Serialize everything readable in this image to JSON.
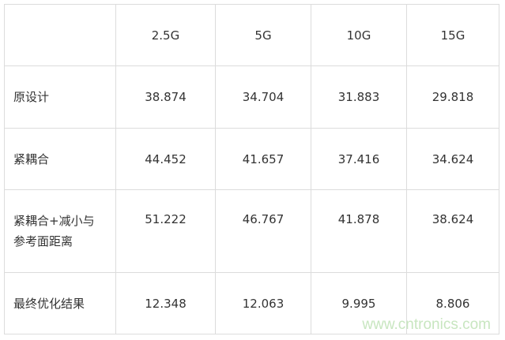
{
  "table": {
    "headers": [
      "",
      "2.5G",
      "5G",
      "10G",
      "15G"
    ],
    "rows": [
      {
        "label": "原设计",
        "values": [
          "38.874",
          "34.704",
          "31.883",
          "29.818"
        ]
      },
      {
        "label": "紧耦合",
        "values": [
          "44.452",
          "41.657",
          "37.416",
          "34.624"
        ]
      },
      {
        "label": "紧耦合+减小与参考面距离",
        "values": [
          "51.222",
          "46.767",
          "41.878",
          "38.624"
        ]
      },
      {
        "label": "最终优化结果",
        "values": [
          "12.348",
          "12.063",
          "9.995",
          "8.806"
        ]
      }
    ]
  },
  "watermark": "www.cntronics.com",
  "colors": {
    "text": "#333333",
    "border": "#dcdcdc",
    "watermark": "#c8e6c0"
  }
}
